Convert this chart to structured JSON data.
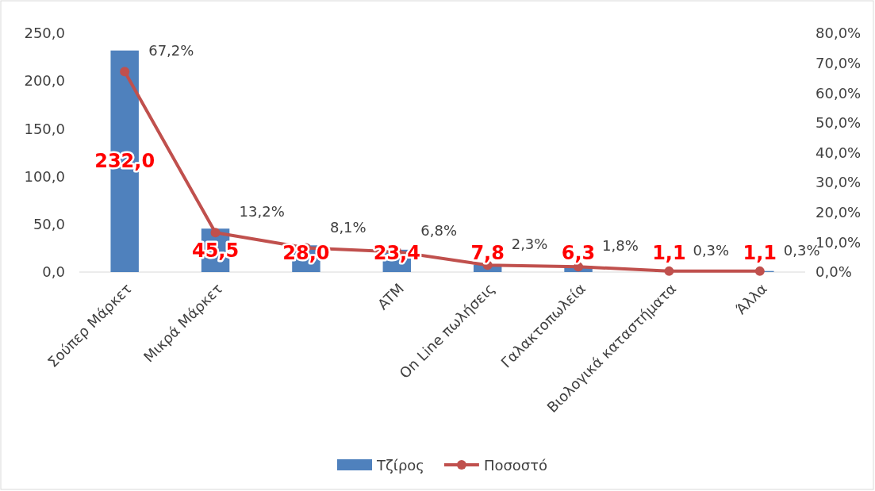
{
  "chart_data": {
    "type": "bar",
    "categories": [
      "Σούπερ Μάρκετ",
      "Μικρά Μάρκετ",
      null,
      "ATM",
      "On Line πωλήσεις",
      "Γαλακτοπωλεία",
      "Βιολογικά καταστήματα",
      "Άλλα"
    ],
    "series": [
      {
        "name": "Τζίρος",
        "color": "#4f81bd",
        "values": [
          232.0,
          45.5,
          28.0,
          23.4,
          7.8,
          6.3,
          1.1,
          1.1
        ],
        "value_labels": [
          "232,0",
          "45,5",
          "28,0",
          "23,4",
          "7,8",
          "6,3",
          "1,1",
          "1,1"
        ]
      },
      {
        "name": "Ποσοστό",
        "type": "line",
        "axis": "y2",
        "color": "#c0504d",
        "marker": "circle",
        "values": [
          67.2,
          13.2,
          8.1,
          6.8,
          2.3,
          1.8,
          0.3,
          0.3
        ],
        "value_labels": [
          "67,2%",
          "13,2%",
          "8,1%",
          "6,8%",
          "2,3%",
          "1,8%",
          "0,3%",
          "0,3%"
        ]
      }
    ],
    "ylim": [
      0,
      250
    ],
    "yticks": [
      {
        "value": 0,
        "label": "0,0"
      },
      {
        "value": 50,
        "label": "50,0"
      },
      {
        "value": 100,
        "label": "100,0"
      },
      {
        "value": 150,
        "label": "150,0"
      },
      {
        "value": 200,
        "label": "200,0"
      },
      {
        "value": 250,
        "label": "250,0"
      }
    ],
    "y2lim": [
      0,
      80
    ],
    "y2ticks": [
      {
        "value": 0,
        "label": "0,0%"
      },
      {
        "value": 10,
        "label": "10,0%"
      },
      {
        "value": 20,
        "label": "20,0%"
      },
      {
        "value": 30,
        "label": "30,0%"
      },
      {
        "value": 40,
        "label": "40,0%"
      },
      {
        "value": 50,
        "label": "50,0%"
      },
      {
        "value": 60,
        "label": "60,0%"
      },
      {
        "value": 70,
        "label": "70,0%"
      },
      {
        "value": 80,
        "label": "80,0%"
      }
    ],
    "grid": false,
    "legend": "bottom"
  }
}
